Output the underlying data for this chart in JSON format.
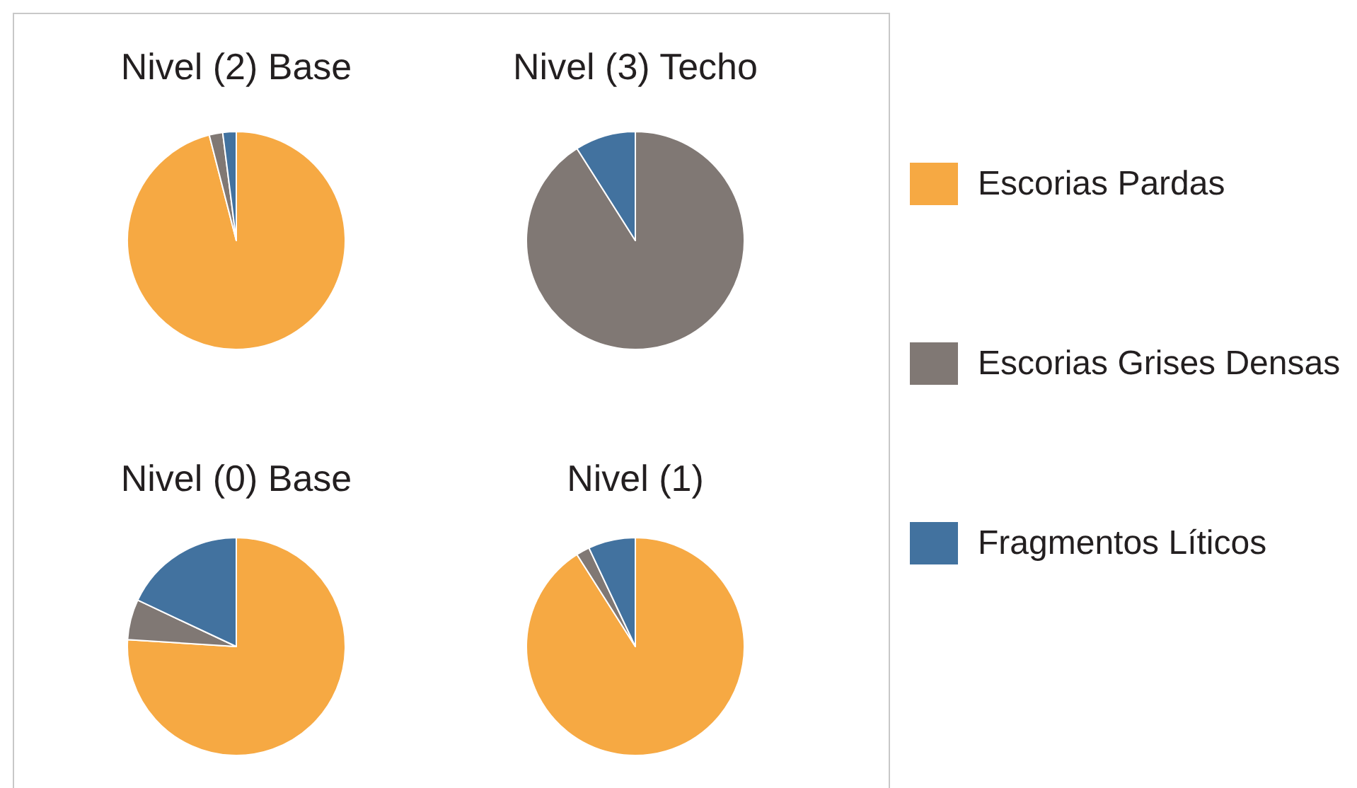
{
  "chart_data": {
    "type": "pie",
    "categories": [
      "Escorias Pardas",
      "Escorias Grises Densas",
      "Fragmentos Líticos"
    ],
    "colors": [
      "#f6a943",
      "#807874",
      "#42729f"
    ],
    "series": [
      {
        "name": "Nivel (2) Base",
        "values": [
          96,
          2,
          2
        ]
      },
      {
        "name": "Nivel (3) Techo",
        "values": [
          0,
          91,
          9
        ]
      },
      {
        "name": "Nivel (0) Base",
        "values": [
          76,
          6,
          18
        ]
      },
      {
        "name": "Nivel (1)",
        "values": [
          91,
          2,
          7
        ]
      }
    ],
    "legend": "right"
  }
}
